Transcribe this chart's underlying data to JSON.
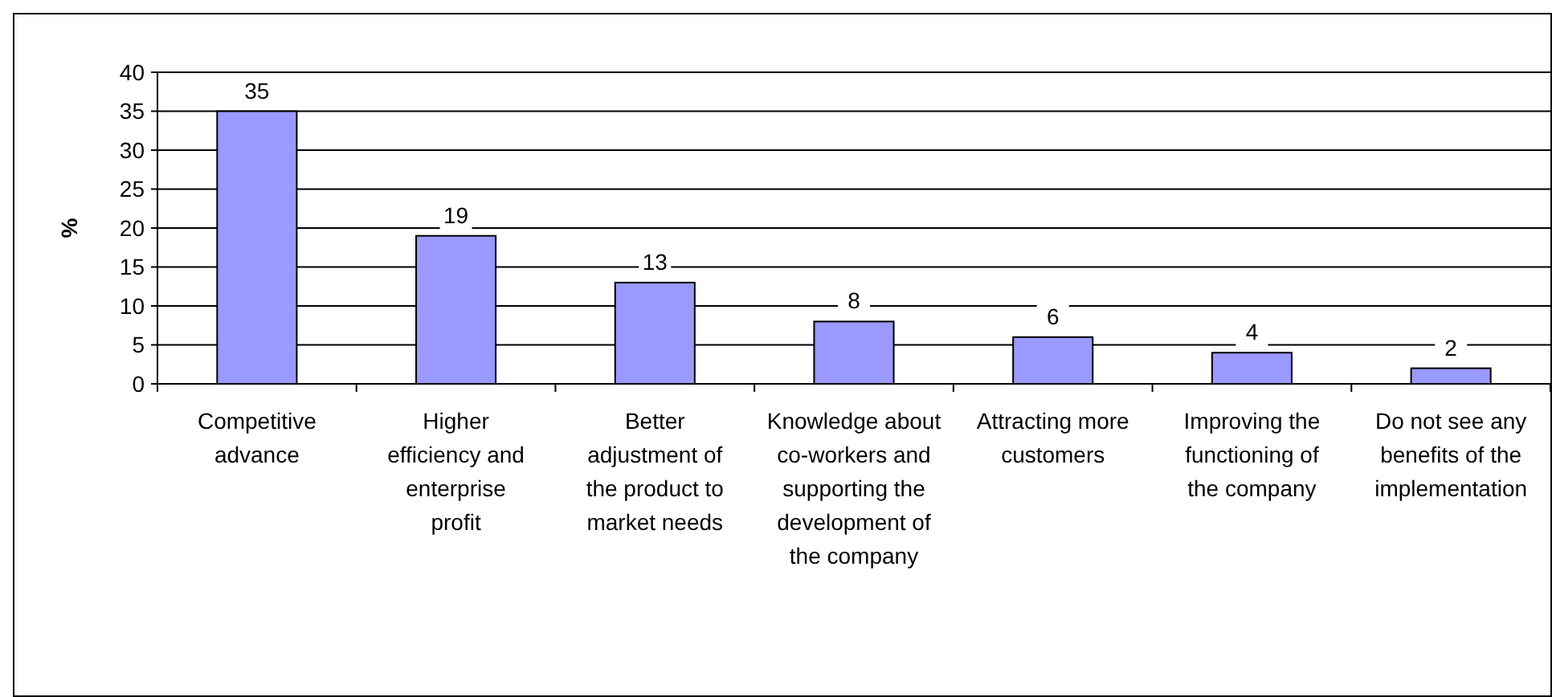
{
  "chart_data": {
    "type": "bar",
    "ylabel": "%",
    "categories": [
      "Competitive advance",
      "Higher efficiency and enterprise profit",
      "Better adjustment of the product to market needs",
      "Knowledge about co-workers and supporting the development of the company",
      "Attracting more customers",
      "Improving the functioning of the company",
      "Do not see any benefits of the implementation"
    ],
    "values": [
      35,
      19,
      13,
      8,
      6,
      4,
      2
    ],
    "color": "#9999ff",
    "ylim": [
      0,
      40
    ],
    "yticks": [
      0,
      5,
      10,
      15,
      20,
      25,
      30,
      35,
      40
    ],
    "grid": "y",
    "data_labels": true
  }
}
